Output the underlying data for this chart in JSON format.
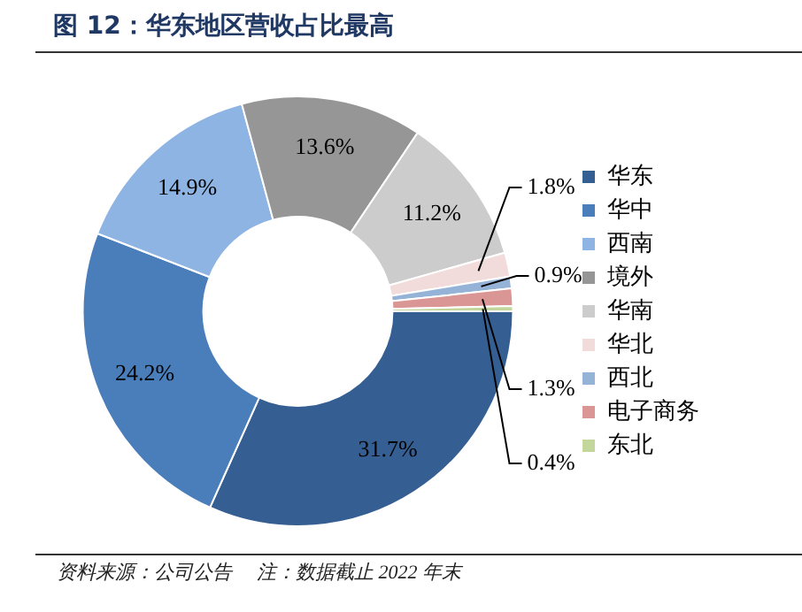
{
  "chart_data": {
    "type": "donut",
    "title": "图 12：华东地区营收占比最高",
    "categories": [
      "华东",
      "华中",
      "西南",
      "境外",
      "华南",
      "华北",
      "西北",
      "电子商务",
      "东北"
    ],
    "values": [
      31.7,
      24.2,
      14.9,
      13.6,
      11.2,
      1.8,
      0.9,
      1.3,
      0.4
    ],
    "value_labels": [
      "31.7%",
      "24.2%",
      "14.9%",
      "13.6%",
      "11.2%",
      "1.8%",
      "0.9%",
      "1.3%",
      "0.4%"
    ],
    "colors": [
      "#355f93",
      "#4a7ebb",
      "#8db4e2",
      "#969696",
      "#cccccc",
      "#f2dcdb",
      "#95b3d7",
      "#d99694",
      "#c3d69b"
    ],
    "legend": "right",
    "annotations": [
      "资料来源：公司公告",
      "注：数据截止 2022 年末"
    ]
  }
}
